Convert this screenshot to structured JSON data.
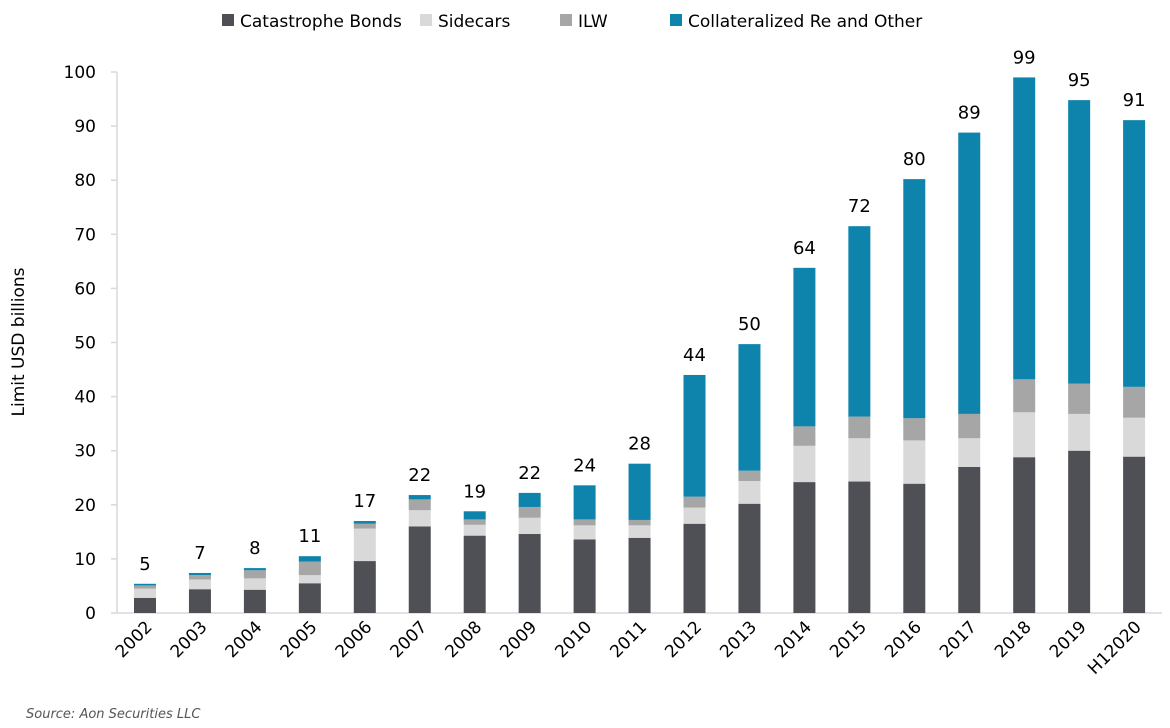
{
  "chart_data": {
    "type": "bar",
    "stacked": true,
    "title": "",
    "xlabel": "",
    "ylabel": "Limit USD billions",
    "ylim": [
      0,
      100
    ],
    "yticks": [
      0,
      10,
      20,
      30,
      40,
      50,
      60,
      70,
      80,
      90,
      100
    ],
    "grid": false,
    "legend_position": "top",
    "categories": [
      "2002",
      "2003",
      "2004",
      "2005",
      "2006",
      "2007",
      "2008",
      "2009",
      "2010",
      "2011",
      "2012",
      "2013",
      "2014",
      "2015",
      "2016",
      "2017",
      "2018",
      "2019",
      "H1 2020"
    ],
    "category_labels": [
      "2002",
      "2003",
      "2004",
      "2005",
      "2006",
      "2007",
      "2008",
      "2009",
      "2010",
      "2011",
      "2012",
      "2013",
      "2014",
      "2015",
      "2016",
      "2017",
      "2018",
      "2019",
      "H12020"
    ],
    "series": [
      {
        "name": "Catastrophe Bonds",
        "color": "#4f5055",
        "values": [
          2.8,
          4.4,
          4.3,
          5.5,
          9.6,
          16.0,
          14.3,
          14.6,
          13.6,
          13.9,
          16.5,
          20.2,
          24.2,
          24.3,
          23.9,
          27.0,
          28.8,
          30.0,
          28.9
        ]
      },
      {
        "name": "Sidecars",
        "color": "#d9d9d9",
        "values": [
          1.7,
          1.8,
          2.1,
          1.5,
          6.0,
          3.0,
          2.0,
          3.0,
          2.6,
          2.3,
          3.0,
          4.2,
          6.7,
          8.0,
          8.0,
          5.3,
          8.3,
          6.8,
          7.2
        ]
      },
      {
        "name": "ILW",
        "color": "#a6a6a6",
        "values": [
          0.6,
          0.8,
          1.5,
          2.5,
          0.9,
          2.0,
          1.0,
          2.0,
          1.1,
          1.0,
          2.0,
          1.9,
          3.6,
          4.0,
          4.1,
          4.5,
          6.1,
          5.6,
          5.7
        ]
      },
      {
        "name": "Collateralized Re and Other",
        "color": "#0e83ab",
        "values": [
          0.3,
          0.4,
          0.4,
          1.0,
          0.5,
          0.8,
          1.5,
          2.6,
          6.3,
          10.4,
          22.5,
          23.4,
          29.3,
          35.2,
          44.2,
          52.0,
          55.8,
          52.4,
          49.3
        ]
      }
    ],
    "totals": [
      "5",
      "7",
      "8",
      "11",
      "17",
      "22",
      "19",
      "22",
      "24",
      "28",
      "44",
      "50",
      "64",
      "72",
      "80",
      "89",
      "99",
      "95",
      "91"
    ],
    "source": "Source: Aon Securities LLC"
  }
}
